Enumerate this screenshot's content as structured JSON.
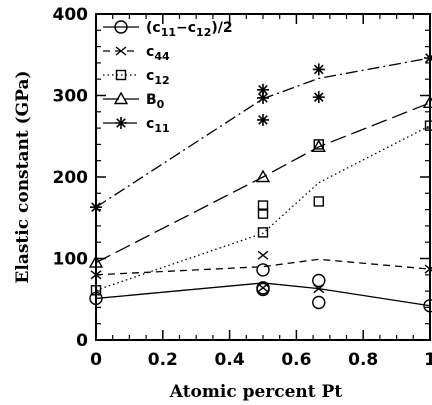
{
  "chart_data": {
    "type": "line",
    "xlabel": "Atomic percent Pt",
    "ylabel": "Elastic constant (GPa)",
    "xlim": [
      0,
      1
    ],
    "ylim": [
      0,
      400
    ],
    "x_ticks": [
      0,
      0.2,
      0.4,
      0.6,
      0.8,
      1
    ],
    "x_tick_labels": [
      "0",
      "0.2",
      "0.4",
      "0.6",
      "0.8",
      "1"
    ],
    "y_ticks": [
      0,
      100,
      200,
      300,
      400
    ],
    "y_tick_labels": [
      "0",
      "100",
      "200",
      "300",
      "400"
    ],
    "legend_position": "top-left",
    "series": [
      {
        "name": "(c11-c12)/2",
        "legend_main": "(c",
        "legend_sub1": "11",
        "legend_mid": "−c",
        "legend_sub2": "12",
        "legend_end": ")/2",
        "marker": "circle",
        "line_style": "solid",
        "line": [
          [
            0,
            51
          ],
          [
            0.5,
            70
          ],
          [
            0.667,
            63
          ],
          [
            1,
            42
          ]
        ],
        "points": [
          [
            0,
            51
          ],
          [
            0.5,
            86
          ],
          [
            0.5,
            64
          ],
          [
            0.5,
            62
          ],
          [
            0.667,
            73
          ],
          [
            0.667,
            46
          ],
          [
            1,
            42
          ]
        ]
      },
      {
        "name": "c44",
        "legend_main": "c",
        "legend_sub1": "44",
        "marker": "x",
        "line_style": "dashed-short",
        "line": [
          [
            0,
            80
          ],
          [
            0.5,
            90
          ],
          [
            0.667,
            99
          ],
          [
            1,
            87
          ]
        ],
        "points": [
          [
            0,
            80
          ],
          [
            0.5,
            104
          ],
          [
            0.5,
            64
          ],
          [
            0.667,
            63
          ],
          [
            1,
            87
          ]
        ]
      },
      {
        "name": "c12",
        "legend_main": "c",
        "legend_sub1": "12",
        "marker": "square",
        "line_style": "dotted",
        "line": [
          [
            0,
            61
          ],
          [
            0.5,
            131
          ],
          [
            0.667,
            193
          ],
          [
            1,
            263
          ]
        ],
        "points": [
          [
            0,
            61
          ],
          [
            0.5,
            165
          ],
          [
            0.5,
            155
          ],
          [
            0.5,
            132
          ],
          [
            0.667,
            240
          ],
          [
            0.667,
            170
          ],
          [
            1,
            263
          ]
        ]
      },
      {
        "name": "B0",
        "legend_main": "B",
        "legend_sub1": "0",
        "marker": "triangle",
        "line_style": "dashed-long",
        "line": [
          [
            0,
            95
          ],
          [
            0.5,
            200
          ],
          [
            0.667,
            237
          ],
          [
            1,
            291
          ]
        ],
        "points": [
          [
            0,
            95
          ],
          [
            0.5,
            200
          ],
          [
            0.667,
            237
          ],
          [
            1,
            291
          ]
        ]
      },
      {
        "name": "c11",
        "legend_main": "c",
        "legend_sub1": "11",
        "marker": "star",
        "line_style": "dash-dot",
        "line": [
          [
            0,
            163
          ],
          [
            0.5,
            296
          ],
          [
            0.667,
            321
          ],
          [
            1,
            346
          ]
        ],
        "points": [
          [
            0,
            163
          ],
          [
            0.5,
            307
          ],
          [
            0.5,
            297
          ],
          [
            0.5,
            270
          ],
          [
            0.667,
            332
          ],
          [
            0.667,
            298
          ],
          [
            1,
            346
          ]
        ]
      }
    ]
  }
}
